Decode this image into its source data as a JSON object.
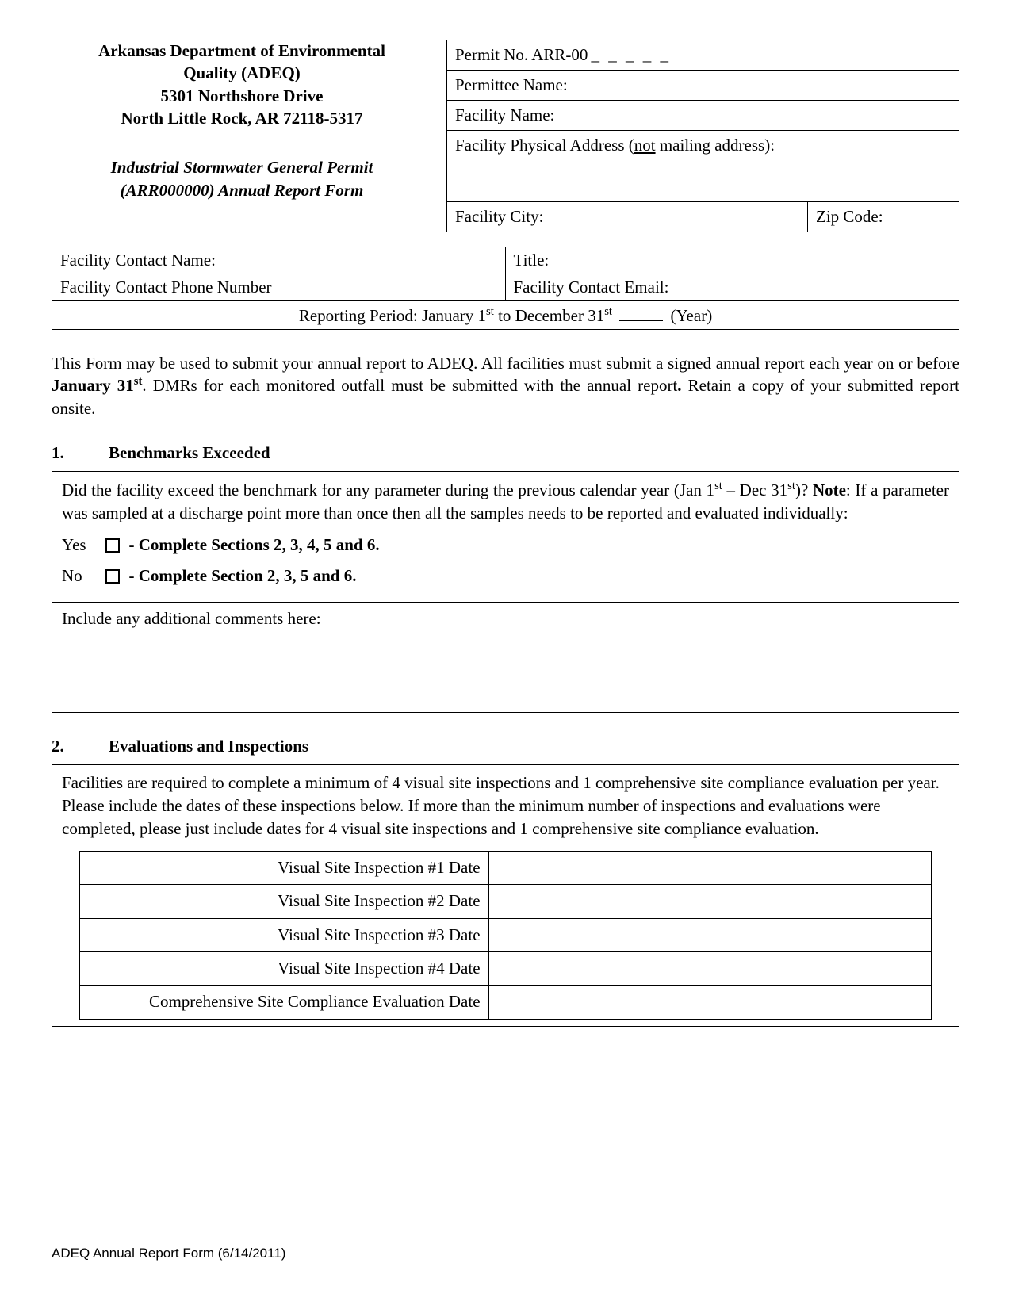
{
  "header_left": {
    "line1": "Arkansas Department of Environmental",
    "line2": "Quality (ADEQ)",
    "line3": "5301 Northshore Drive",
    "line4": "North Little Rock, AR 72118-5317",
    "line5": "Industrial Stormwater General Permit",
    "line6": "(ARR000000) Annual Report Form"
  },
  "header_right": {
    "permit_label": "Permit No. ARR-00",
    "permit_blanks": "_ _ _ _ _",
    "permittee_label": "Permittee Name:",
    "facility_name_label": "Facility Name:",
    "address_label_pre": "Facility Physical Address (",
    "address_label_not": "not",
    "address_label_post": " mailing address):",
    "city_label": "Facility City:",
    "zip_label": "Zip Code:"
  },
  "contact": {
    "name_label": "Facility Contact Name:",
    "title_label": "Title:",
    "phone_label": "Facility Contact Phone Number",
    "email_label": "Facility Contact Email:",
    "reporting_pre": "Reporting Period: January 1",
    "reporting_mid": " to December 31",
    "reporting_post": " (Year)"
  },
  "intro": {
    "text_pre": "This Form may be used to submit your annual report to ADEQ.  All facilities must submit a signed annual report each year on or before ",
    "deadline": "January 31",
    "text_mid": ".   DMRs for each monitored outfall must be submitted with the annual report",
    "dot": ".",
    "text_post": "  Retain a copy of your submitted report onsite."
  },
  "s1": {
    "num": "1.",
    "title": "Benchmarks Exceeded",
    "q_pre": "Did the facility exceed the benchmark for any parameter during the previous calendar year (Jan 1",
    "q_mid": " – Dec 31",
    "q_post": ")? ",
    "note_label": "Note",
    "note_text": ": If a parameter was sampled at a discharge point more than once then all the samples needs to be reported and evaluated individually:",
    "yes": "Yes",
    "no": "No",
    "yes_instr": " - Complete Sections 2, 3, 4, 5 and 6.",
    "no_instr": " - Complete Section 2, 3, 5 and 6.",
    "comments_label": "Include any additional comments here:"
  },
  "s2": {
    "num": "2.",
    "title": "Evaluations and Inspections",
    "intro": "Facilities are required to complete a minimum of 4 visual site inspections and 1 comprehensive site compliance evaluation per year.  Please include the dates of these inspections below.  If more than the minimum number of inspections and evaluations were completed, please just include dates for 4 visual site inspections and 1 comprehensive site compliance evaluation.",
    "rows": [
      "Visual Site Inspection #1 Date",
      "Visual Site Inspection #2 Date",
      "Visual Site Inspection #3 Date",
      "Visual Site Inspection #4 Date",
      "Comprehensive Site Compliance Evaluation Date"
    ]
  },
  "footer": "ADEQ Annual Report Form (6/14/2011)"
}
